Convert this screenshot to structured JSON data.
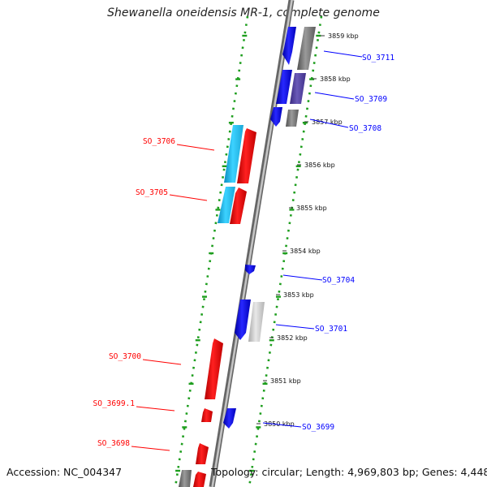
{
  "title": "Shewanella oneidensis MR-1, complete genome",
  "accession": "Accession: NC_004347",
  "topology": "Topology: circular; Length: 4,969,803 bp; Genes: 4,448",
  "colors": {
    "forward": "#ff0000",
    "reverse": "#0000ff",
    "cyan": "#1eb4e6",
    "grey": "#808080",
    "track": "#22aa22"
  },
  "kbp_ticks": [
    {
      "label": "3859 kbp",
      "kbp": 3859
    },
    {
      "label": "3858 kbp",
      "kbp": 3858
    },
    {
      "label": "3857 kbp",
      "kbp": 3857
    },
    {
      "label": "3856 kbp",
      "kbp": 3856
    },
    {
      "label": "3855 kbp",
      "kbp": 3855
    },
    {
      "label": "3854 kbp",
      "kbp": 3854
    },
    {
      "label": "3853 kbp",
      "kbp": 3853
    },
    {
      "label": "3852 kbp",
      "kbp": 3852
    },
    {
      "label": "3851 kbp",
      "kbp": 3851
    },
    {
      "label": "3850 kbp",
      "kbp": 3850
    }
  ],
  "genes": [
    {
      "label": "SO_3711",
      "strand": "reverse",
      "color": "blue",
      "start_kbp": 3858.6,
      "end_kbp": 3859.2
    },
    {
      "label": "SO_3709",
      "strand": "reverse",
      "color": "blue",
      "start_kbp": 3857.7,
      "end_kbp": 3858.2
    },
    {
      "label": "SO_3708",
      "strand": "reverse",
      "color": "blue",
      "start_kbp": 3857.1,
      "end_kbp": 3857.4
    },
    {
      "label": "SO_3706",
      "strand": "forward",
      "color": "red",
      "start_kbp": 3855.6,
      "end_kbp": 3856.8
    },
    {
      "label": "SO_3705",
      "strand": "forward",
      "color": "red",
      "start_kbp": 3854.9,
      "end_kbp": 3855.5
    },
    {
      "label": "SO_3704",
      "strand": "reverse",
      "color": "blue",
      "start_kbp": 3853.6,
      "end_kbp": 3853.8
    },
    {
      "label": "SO_3701",
      "strand": "reverse",
      "color": "blue",
      "start_kbp": 3852.1,
      "end_kbp": 3852.9
    },
    {
      "label": "SO_3700",
      "strand": "forward",
      "color": "red",
      "start_kbp": 3850.5,
      "end_kbp": 3851.8
    },
    {
      "label": "SO_3699.1",
      "strand": "forward",
      "color": "red",
      "start_kbp": 3850.1,
      "end_kbp": 3850.3
    },
    {
      "label": "SO_3699",
      "strand": "reverse",
      "color": "blue",
      "start_kbp": 3849.9,
      "end_kbp": 3850.3
    },
    {
      "label": "SO_3698",
      "strand": "forward",
      "color": "red",
      "start_kbp": 3849.3,
      "end_kbp": 3849.7
    }
  ]
}
